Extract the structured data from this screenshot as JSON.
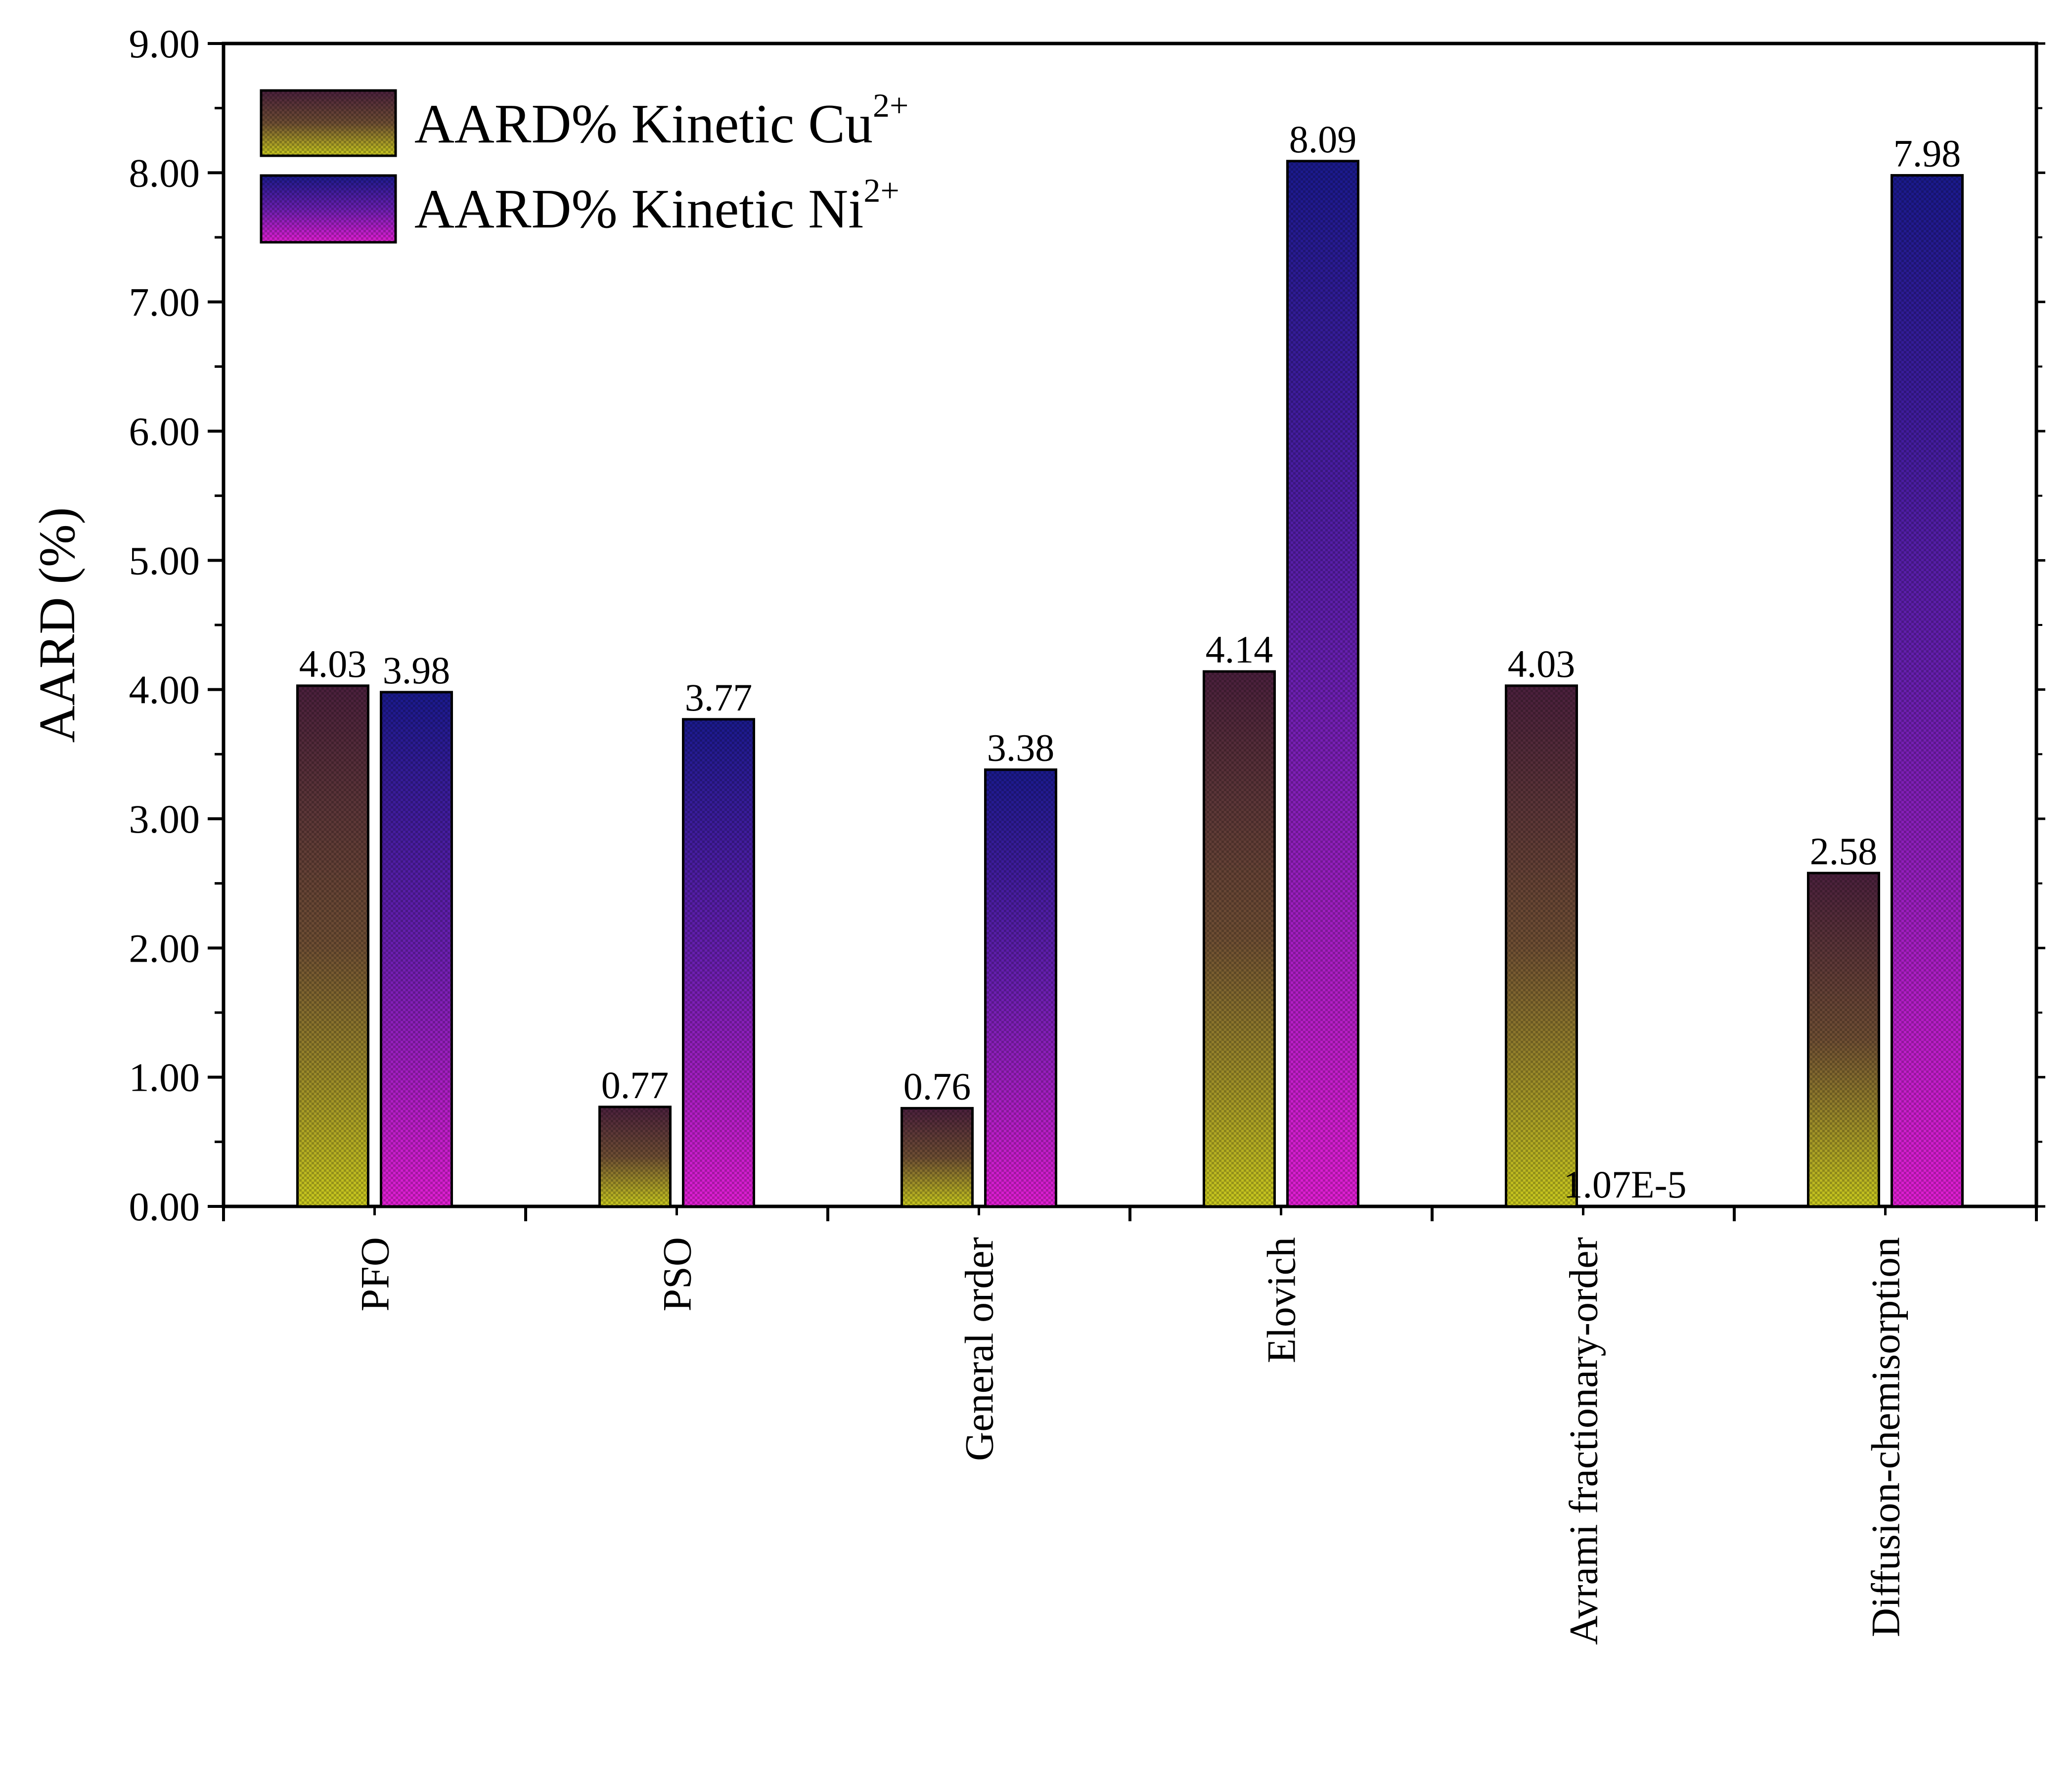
{
  "chart_data": {
    "type": "bar",
    "title": "",
    "xlabel": "",
    "ylabel": "AARD (%)",
    "ylim": [
      0,
      9
    ],
    "y_ticks": [
      "0.00",
      "1.00",
      "2.00",
      "3.00",
      "4.00",
      "5.00",
      "6.00",
      "7.00",
      "8.00",
      "9.00"
    ],
    "y_tick_values": [
      0,
      1,
      2,
      3,
      4,
      5,
      6,
      7,
      8,
      9
    ],
    "categories": [
      "PFO",
      "PSO",
      "General order",
      "Elovich",
      "Avrami fractionary-order",
      "Diffusion-chemisorption"
    ],
    "series": [
      {
        "name": "AARD% Kinetic Cu2+",
        "legend_base": "AARD% Kinetic Cu",
        "legend_sup": "2+",
        "values": [
          4.03,
          0.77,
          0.76,
          4.14,
          4.03,
          2.58
        ],
        "labels": [
          "4.03",
          "0.77",
          "0.76",
          "4.14",
          "4.03",
          "2.58"
        ],
        "color_top": "#4a1f3c",
        "color_bottom": "#c8c81e"
      },
      {
        "name": "AARD% Kinetic Ni2+",
        "legend_base": "AARD% Kinetic Ni",
        "legend_sup": "2+",
        "values": [
          3.98,
          3.77,
          3.38,
          8.09,
          1.07e-05,
          7.98
        ],
        "labels": [
          "3.98",
          "3.77",
          "3.38",
          "8.09",
          "1.07E-5",
          "7.98"
        ],
        "color_top": "#1a1a8c",
        "color_bottom": "#e01ed2"
      }
    ],
    "legend_position": "top-left",
    "grid": false
  }
}
